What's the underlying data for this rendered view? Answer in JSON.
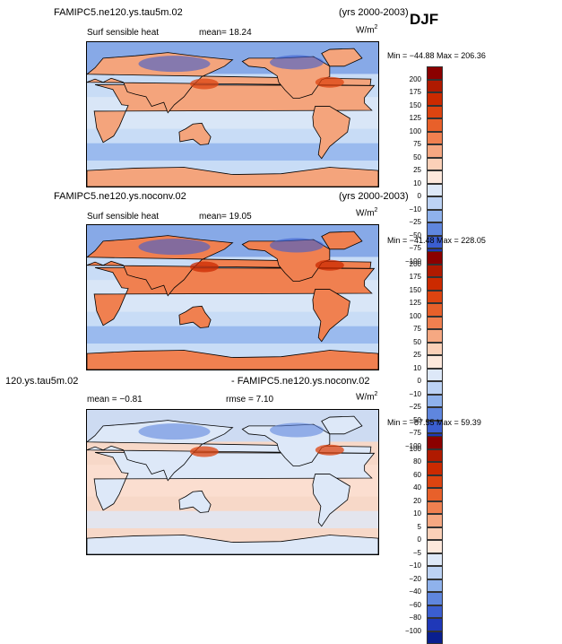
{
  "season": "DJF",
  "panels": [
    {
      "case": "FAMIPC5.ne120.ys.tau5m.02",
      "years": "(yrs 2000-2003)",
      "variable": "Surf sensible heat",
      "stat_text": "mean=  18.24",
      "units": "W/m",
      "units_sup": "2",
      "minmax": "Min = −44.88  Max = 206.36",
      "colorbar_labels": [
        "200",
        "175",
        "150",
        "125",
        "100",
        "75",
        "50",
        "25",
        "10",
        "0",
        "−10",
        "−25",
        "−50",
        "−75",
        "−100"
      ],
      "colorbar_colors": [
        "#8b0000",
        "#b01a00",
        "#cc2a00",
        "#dd4410",
        "#e8602a",
        "#f08050",
        "#f6a882",
        "#fbd0b8",
        "#fde8dc",
        "#dde8f8",
        "#bcd2f4",
        "#8fb2ec",
        "#5f86de",
        "#3b5ed0",
        "#1f38b8",
        "#0a1f8f"
      ]
    },
    {
      "case": "FAMIPC5.ne120.ys.noconv.02",
      "years": "(yrs 2000-2003)",
      "variable": "Surf sensible heat",
      "stat_text": "mean=  19.05",
      "units": "W/m",
      "units_sup": "2",
      "minmax": "Min = −41.48  Max = 228.05",
      "colorbar_labels": [
        "200",
        "175",
        "150",
        "125",
        "100",
        "75",
        "50",
        "25",
        "10",
        "0",
        "−10",
        "−25",
        "−50",
        "−75",
        "−100"
      ],
      "colorbar_colors": [
        "#8b0000",
        "#b01a00",
        "#cc2a00",
        "#dd4410",
        "#e8602a",
        "#f08050",
        "#f6a882",
        "#fbd0b8",
        "#fde8dc",
        "#dde8f8",
        "#bcd2f4",
        "#8fb2ec",
        "#5f86de",
        "#3b5ed0",
        "#1f38b8",
        "#0a1f8f"
      ]
    },
    {
      "case_left": "120.ys.tau5m.02",
      "case_right": "- FAMIPC5.ne120.ys.noconv.02",
      "stat_text": "mean =  −0.81",
      "rmse_text": "rmse =    7.10",
      "units": "W/m",
      "units_sup": "2",
      "minmax": "Min = −87.55  Max =  59.39",
      "colorbar_labels": [
        "100",
        "80",
        "60",
        "40",
        "20",
        "10",
        "5",
        "0",
        "−5",
        "−10",
        "−20",
        "−40",
        "−60",
        "−80",
        "−100"
      ],
      "colorbar_colors": [
        "#8b0000",
        "#b01a00",
        "#cc2a00",
        "#dd4410",
        "#e8602a",
        "#f08050",
        "#f6a882",
        "#fbd0b8",
        "#fde8dc",
        "#dde8f8",
        "#bcd2f4",
        "#8fb2ec",
        "#5f86de",
        "#3b5ed0",
        "#1f38b8",
        "#0a1f8f"
      ]
    }
  ]
}
